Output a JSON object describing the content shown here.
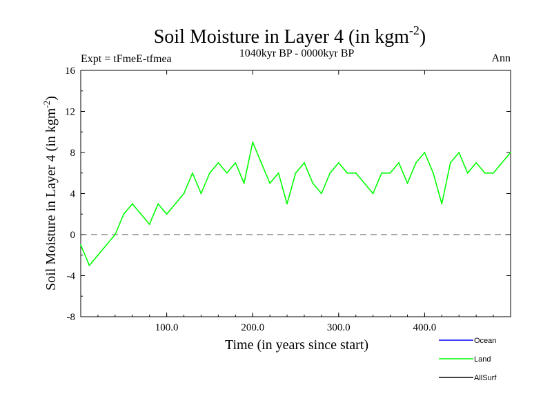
{
  "chart_data": {
    "type": "line",
    "title": "Soil Moisture in Layer 4 (in kgm",
    "title_sup": "-2",
    "title_close": ")",
    "subtitle": "1040kyr BP - 0000kyr BP",
    "expt_label": "Expt = tFmeE-tfmea",
    "season_label": "Ann",
    "xlabel": "Time (in years since start)",
    "ylabel": "Soil Moisture in Layer 4 (in kgm",
    "ylabel_sup": "-2",
    "ylabel_close": ")",
    "xlim": [
      0,
      500
    ],
    "ylim": [
      -8,
      16
    ],
    "x_ticks": [
      {
        "value": 100,
        "label": "100.0"
      },
      {
        "value": 200,
        "label": "200.0"
      },
      {
        "value": 300,
        "label": "300.0"
      },
      {
        "value": 400,
        "label": "400.0"
      }
    ],
    "y_ticks": [
      {
        "value": -8,
        "label": "-8"
      },
      {
        "value": -4,
        "label": "-4"
      },
      {
        "value": 0,
        "label": "0"
      },
      {
        "value": 4,
        "label": "4"
      },
      {
        "value": 8,
        "label": "8"
      },
      {
        "value": 12,
        "label": "12"
      },
      {
        "value": 16,
        "label": "16"
      }
    ],
    "zero_line": 0,
    "legend": [
      {
        "name": "Ocean",
        "color": "#0000ff"
      },
      {
        "name": "Land",
        "color": "#00ff00"
      },
      {
        "name": "AllSurf",
        "color": "#000000"
      }
    ],
    "series": [
      {
        "name": "Land",
        "color": "#00ff00",
        "x": [
          0,
          10,
          20,
          30,
          40,
          50,
          60,
          70,
          80,
          90,
          100,
          110,
          120,
          130,
          140,
          150,
          160,
          170,
          180,
          190,
          200,
          210,
          220,
          230,
          240,
          250,
          260,
          270,
          280,
          290,
          300,
          310,
          320,
          330,
          340,
          350,
          360,
          370,
          380,
          390,
          400,
          410,
          420,
          430,
          440,
          450,
          460,
          470,
          480,
          490,
          500
        ],
        "values": [
          -1,
          -3,
          -2,
          -1,
          0,
          2,
          3,
          2,
          1,
          3,
          2,
          3,
          4,
          6,
          4,
          6,
          7,
          6,
          7,
          5,
          9,
          7,
          5,
          6,
          3,
          6,
          7,
          5,
          4,
          6,
          7,
          6,
          6,
          5,
          4,
          6,
          6,
          7,
          5,
          7,
          8,
          6,
          3,
          7,
          8,
          6,
          7,
          6,
          6,
          7,
          8
        ]
      }
    ]
  }
}
